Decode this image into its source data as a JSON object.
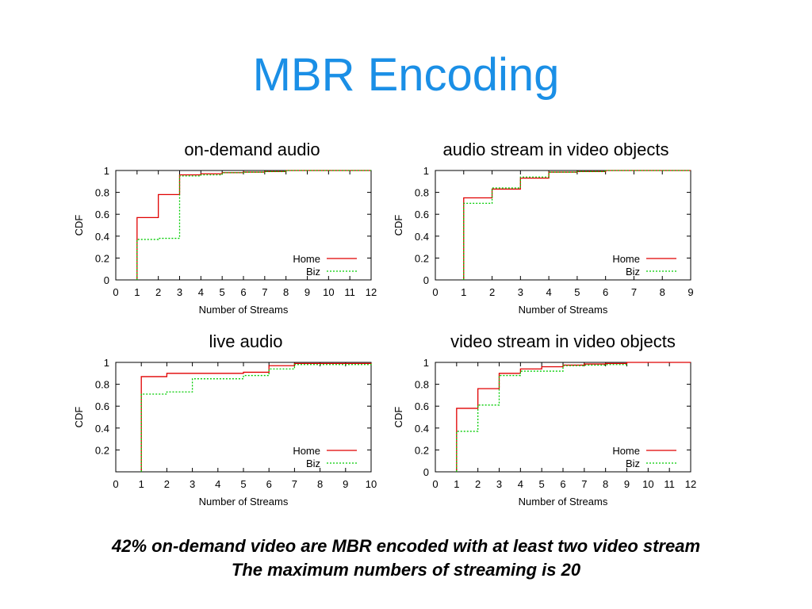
{
  "slide": {
    "title": "MBR Encoding",
    "title_color": "#1a8fe6",
    "caption_lines": [
      "42% on-demand video are MBR encoded with at least two video stream",
      "The maximum numbers of streaming is 20"
    ]
  },
  "chart_data": [
    {
      "type": "line",
      "step": true,
      "title": "on-demand audio",
      "xlabel": "Number of Streams",
      "ylabel": "CDF",
      "xlim": [
        0,
        12
      ],
      "ylim": [
        0,
        1
      ],
      "xticks": [
        0,
        1,
        2,
        3,
        4,
        5,
        6,
        7,
        8,
        9,
        10,
        11,
        12
      ],
      "yticks": [
        0,
        0.2,
        0.4,
        0.6,
        0.8,
        1
      ],
      "ytick_labels": [
        "0",
        "0.2",
        "0.4",
        "0.6",
        "0.8",
        "1"
      ],
      "legend_position": "bottom-right",
      "grid": false,
      "series": [
        {
          "name": "Home",
          "color": "#e00000",
          "dash": "solid",
          "x": [
            1,
            2,
            3,
            4,
            5,
            6,
            7,
            8,
            12
          ],
          "y": [
            0.57,
            0.78,
            0.96,
            0.97,
            0.98,
            0.985,
            0.99,
            1.0,
            1.0
          ]
        },
        {
          "name": "Biz",
          "color": "#00cc00",
          "dash": "dotted",
          "x": [
            1,
            2,
            3,
            4,
            5,
            6,
            7,
            8,
            12
          ],
          "y": [
            0.37,
            0.38,
            0.95,
            0.96,
            0.98,
            0.985,
            0.99,
            1.0,
            1.0
          ]
        }
      ]
    },
    {
      "type": "line",
      "step": true,
      "title": "audio stream in video objects",
      "xlabel": "Number of Streams",
      "ylabel": "CDF",
      "xlim": [
        0,
        9
      ],
      "ylim": [
        0,
        1
      ],
      "xticks": [
        0,
        1,
        2,
        3,
        4,
        5,
        6,
        7,
        8,
        9
      ],
      "yticks": [
        0,
        0.2,
        0.4,
        0.6,
        0.8,
        1
      ],
      "ytick_labels": [
        "0",
        "0.2",
        "0.4",
        "0.6",
        "0.8",
        "1"
      ],
      "legend_position": "bottom-right",
      "grid": false,
      "series": [
        {
          "name": "Home",
          "color": "#e00000",
          "dash": "solid",
          "x": [
            1,
            2,
            3,
            4,
            5,
            6,
            9
          ],
          "y": [
            0.75,
            0.83,
            0.93,
            0.985,
            0.99,
            1.0,
            1.0
          ]
        },
        {
          "name": "Biz",
          "color": "#00cc00",
          "dash": "dotted",
          "x": [
            1,
            2,
            3,
            4,
            5,
            6,
            9
          ],
          "y": [
            0.7,
            0.84,
            0.94,
            0.985,
            0.99,
            1.0,
            1.0
          ]
        }
      ]
    },
    {
      "type": "line",
      "step": true,
      "title": "live audio",
      "xlabel": "Number of Streams",
      "ylabel": "CDF",
      "xlim": [
        0,
        10
      ],
      "ylim": [
        0,
        1
      ],
      "xticks": [
        0,
        1,
        2,
        3,
        4,
        5,
        6,
        7,
        8,
        9,
        10
      ],
      "yticks": [
        0.2,
        0.4,
        0.6,
        0.8,
        1
      ],
      "ytick_labels": [
        "0.2",
        "0.4",
        "0.6",
        "0.8",
        "1"
      ],
      "legend_position": "bottom-right",
      "grid": false,
      "series": [
        {
          "name": "Home",
          "color": "#e00000",
          "dash": "solid",
          "x": [
            1,
            2,
            5,
            6,
            7,
            10
          ],
          "y": [
            0.87,
            0.9,
            0.91,
            0.97,
            0.99,
            0.995
          ]
        },
        {
          "name": "Biz",
          "color": "#00cc00",
          "dash": "dotted",
          "x": [
            1,
            2,
            3,
            5,
            6,
            7,
            10
          ],
          "y": [
            0.71,
            0.73,
            0.85,
            0.88,
            0.94,
            0.98,
            0.99
          ]
        }
      ]
    },
    {
      "type": "line",
      "step": true,
      "title": "video stream in video objects",
      "xlabel": "Number of Streams",
      "ylabel": "CDF",
      "xlim": [
        0,
        12
      ],
      "ylim": [
        0,
        1
      ],
      "xticks": [
        0,
        1,
        2,
        3,
        4,
        5,
        6,
        7,
        8,
        9,
        10,
        11,
        12
      ],
      "yticks": [
        0,
        0.2,
        0.4,
        0.6,
        0.8,
        1
      ],
      "ytick_labels": [
        "0",
        "0.2",
        "0.4",
        "0.6",
        "0.8",
        "1"
      ],
      "legend_position": "bottom-right",
      "grid": false,
      "series": [
        {
          "name": "Home",
          "color": "#e00000",
          "dash": "solid",
          "x": [
            1,
            2,
            3,
            4,
            5,
            6,
            7,
            8,
            9,
            12
          ],
          "y": [
            0.58,
            0.76,
            0.9,
            0.94,
            0.96,
            0.975,
            0.985,
            0.99,
            1.0,
            1.0
          ]
        },
        {
          "name": "Biz",
          "color": "#00cc00",
          "dash": "dotted",
          "x": [
            1,
            2,
            3,
            4,
            6,
            7,
            8,
            9
          ],
          "y": [
            0.37,
            0.61,
            0.88,
            0.92,
            0.97,
            0.975,
            0.98,
            0.99
          ]
        }
      ]
    }
  ]
}
